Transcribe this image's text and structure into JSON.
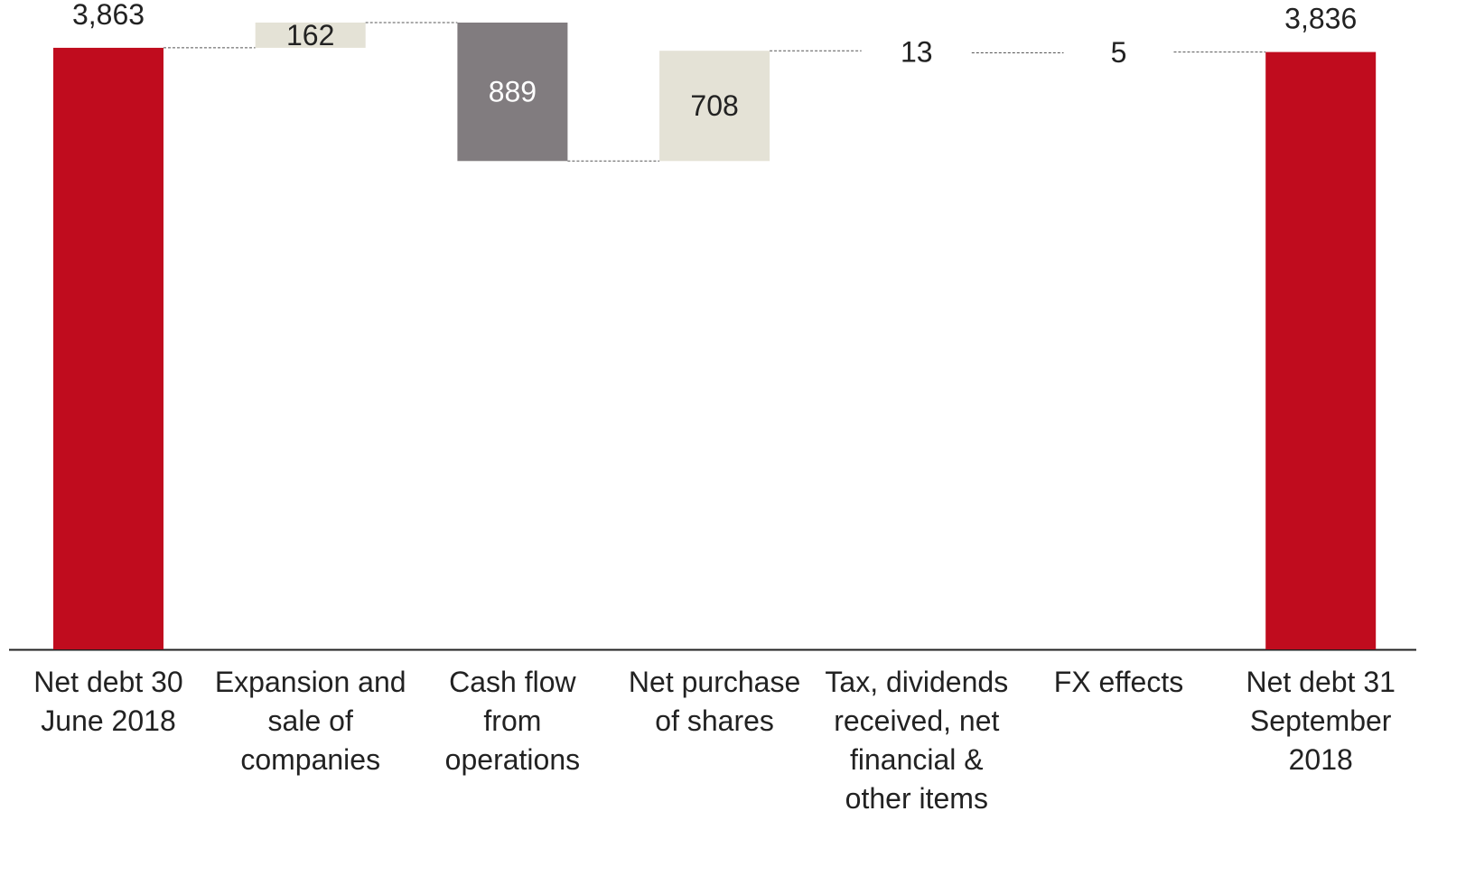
{
  "chart_data": {
    "type": "waterfall",
    "categories": [
      "Net debt 30 June 2018",
      "Expansion and sale of companies",
      "Cash flow from operations",
      "Net purchase of shares",
      "Tax, dividends received, net financial & other items",
      "FX effects",
      "Net debt 31 September 2018"
    ],
    "values": [
      3863,
      162,
      -889,
      708,
      -13,
      5,
      3836
    ],
    "value_labels": [
      "3,863",
      "162",
      "889",
      "708",
      "13",
      "5",
      "3,836"
    ],
    "colors": [
      "#c00c1e",
      "#e4e2d6",
      "#817c7f",
      "#e4e2d6",
      "#ffffff",
      "#ffffff",
      "#c00c1e"
    ],
    "ylim": [
      0,
      4170
    ]
  }
}
